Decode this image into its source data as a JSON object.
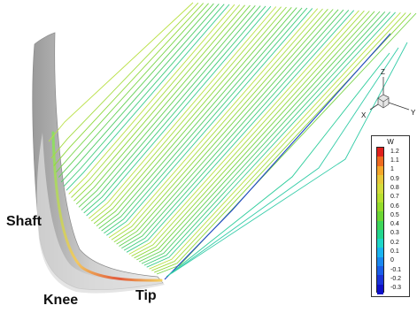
{
  "labels": {
    "shaft": "Shaft",
    "knee": "Knee",
    "tip": "Tip"
  },
  "triad": {
    "z": "Z",
    "x": "X",
    "y": "Y"
  },
  "legend": {
    "title": "W",
    "ticks": [
      "1.2",
      "1.1",
      "1",
      "0.9",
      "0.8",
      "0.7",
      "0.6",
      "0.5",
      "0.4",
      "0.3",
      "0.2",
      "0.1",
      "0",
      "-0.1",
      "-0.2",
      "-0.3"
    ],
    "colors": [
      "#e0201c",
      "#ee6a20",
      "#f4a62a",
      "#e8c83a",
      "#d4dc3c",
      "#b8e030",
      "#94dc2c",
      "#6cd634",
      "#3ed65a",
      "#22d68e",
      "#1ed6c8",
      "#1ab4f0",
      "#1a88f0",
      "#1a5ee8",
      "#1a34d8",
      "#0e10c8"
    ]
  }
}
